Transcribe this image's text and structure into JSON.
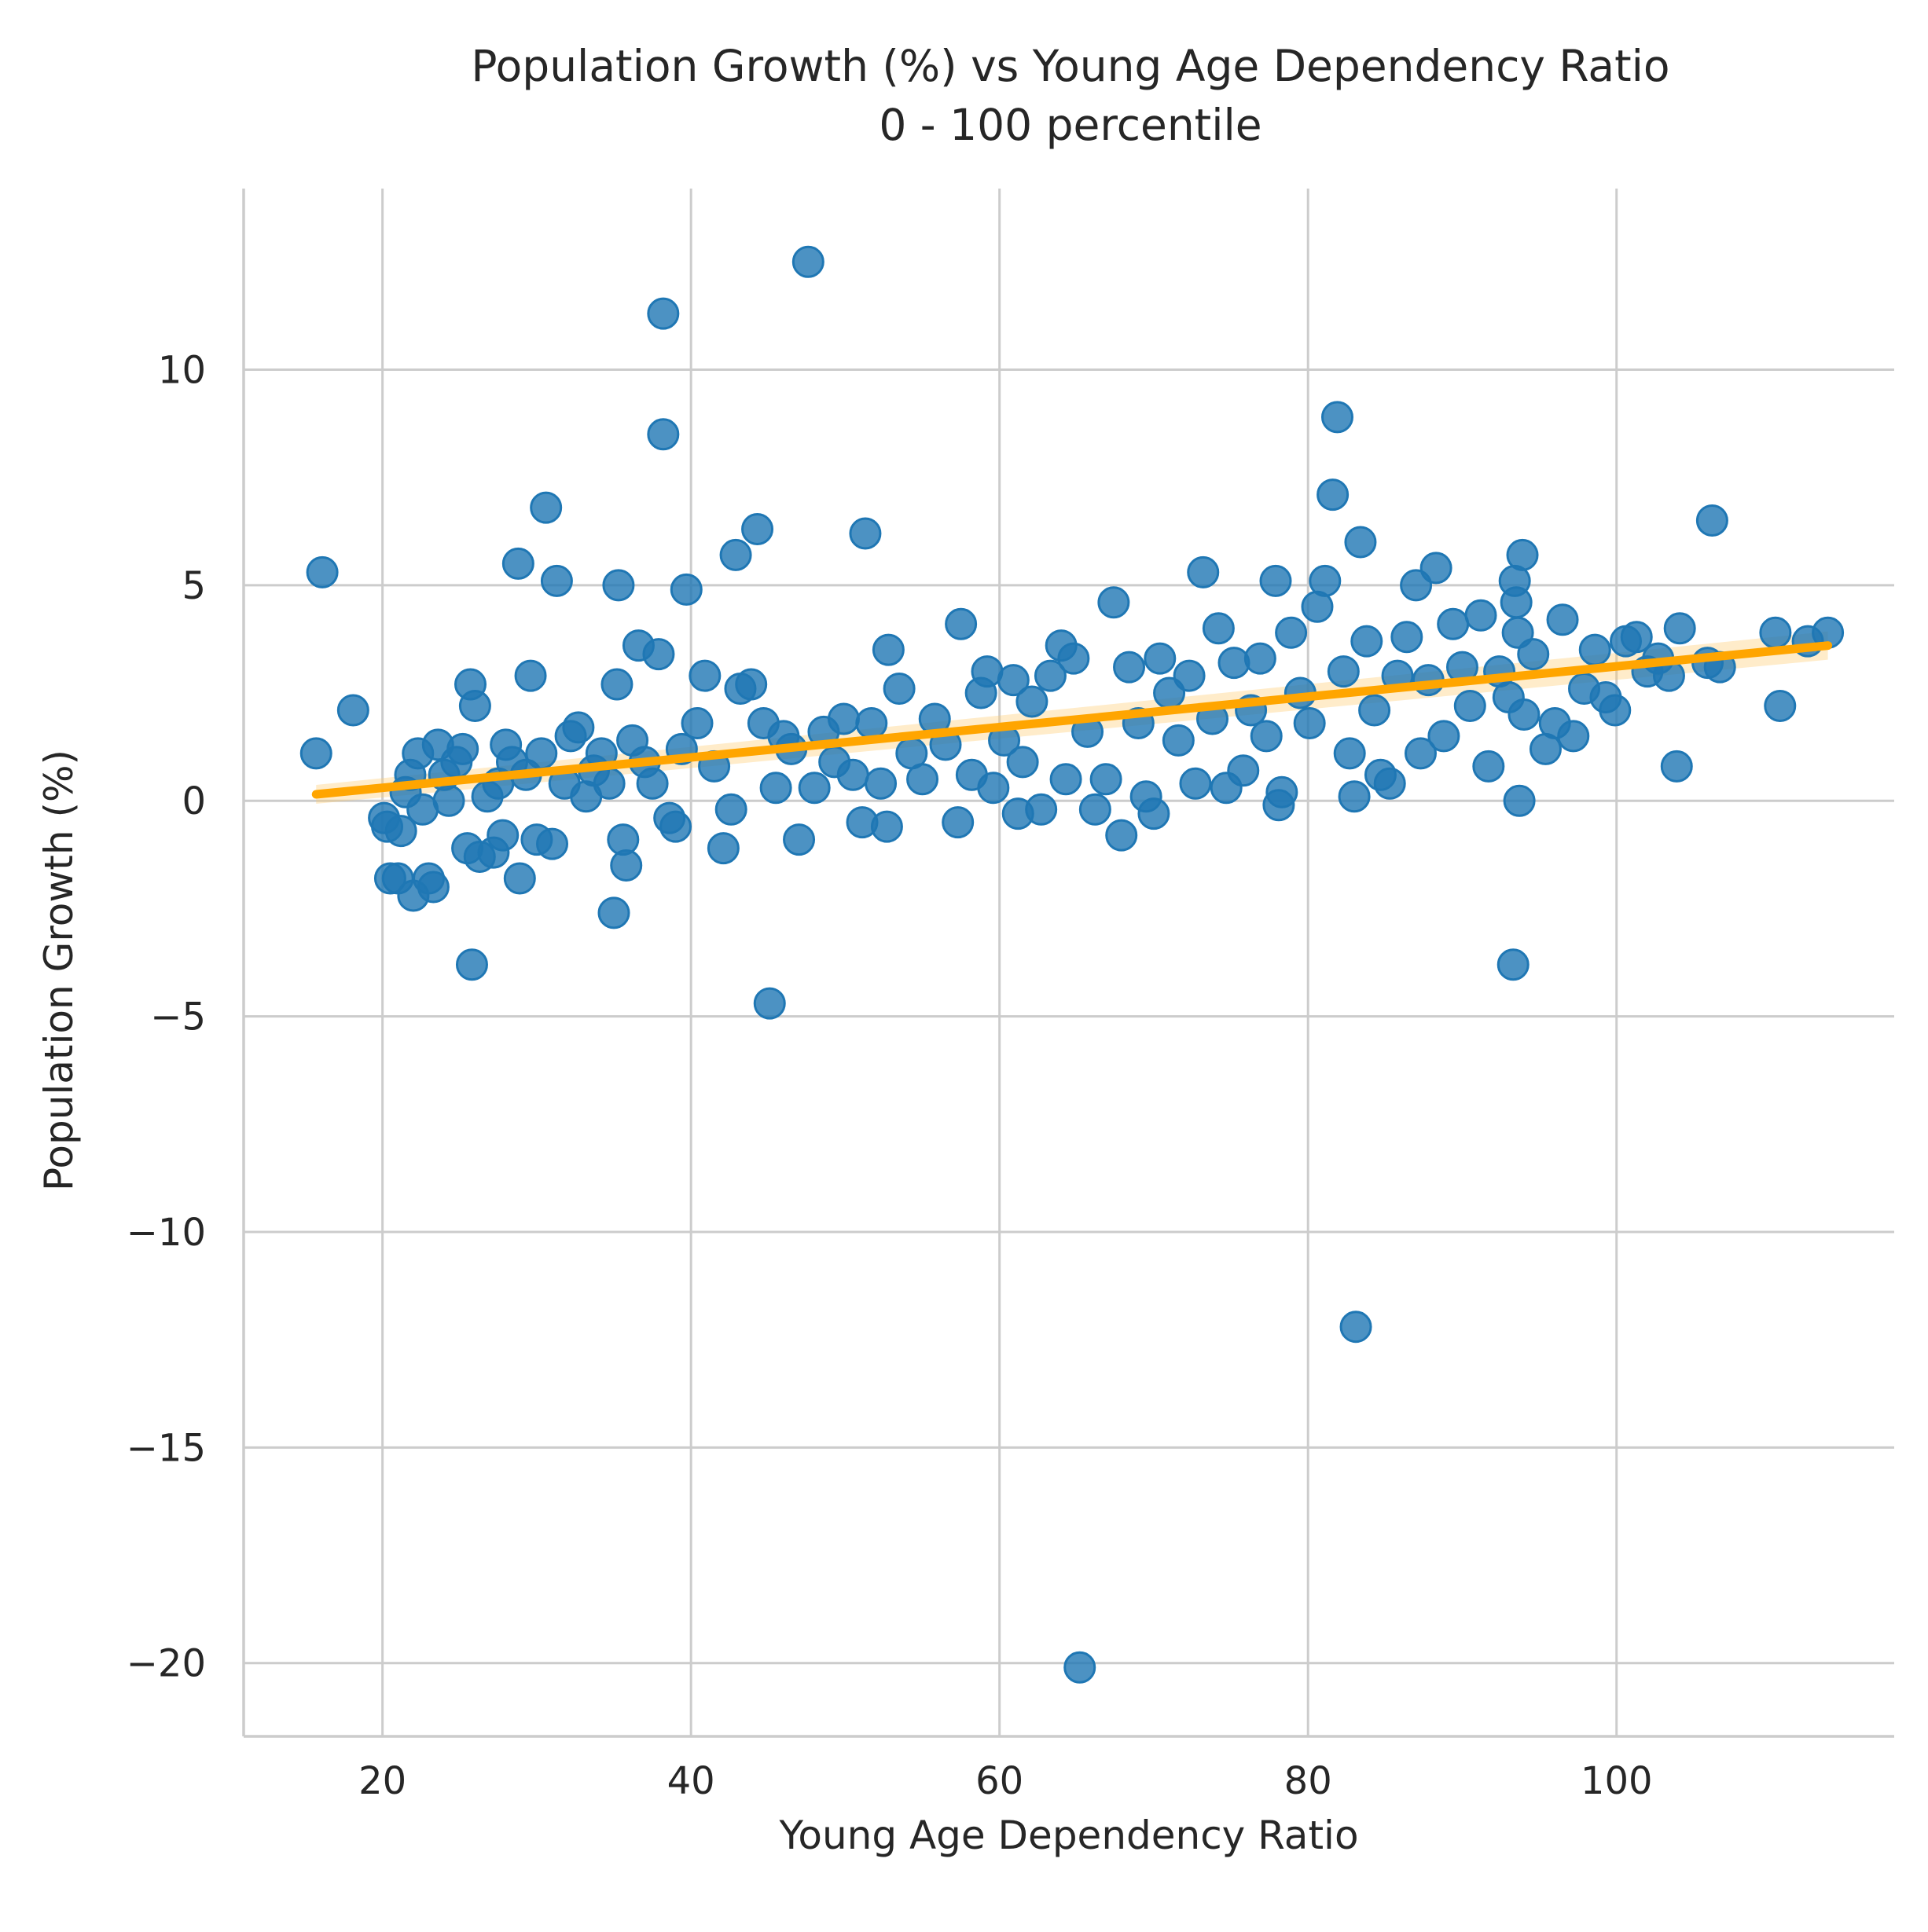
{
  "chart_data": {
    "type": "scatter",
    "title": "Population Growth (%) vs Young Age Dependency Ratio",
    "subtitle": "0 - 100 percentile",
    "xlabel": "Young Age Dependency Ratio",
    "ylabel": "Population Growth (%)",
    "xlim": [
      11,
      118
    ],
    "ylim": [
      -21.7,
      14.2
    ],
    "xticks": [
      20,
      40,
      60,
      80,
      100
    ],
    "yticks": [
      10,
      5,
      0,
      -5,
      -10,
      -15,
      -20
    ],
    "xtick_labels": [
      "20",
      "40",
      "60",
      "80",
      "100"
    ],
    "ytick_labels": [
      "10",
      "5",
      "0",
      "−5",
      "−10",
      "−15",
      "−20"
    ],
    "grid": true,
    "colors": {
      "points": "#1f77b4",
      "regression": "#ffa500",
      "ci_band": "#ffc966"
    },
    "regression_line": {
      "x": [
        15.7,
        113.7
      ],
      "y": [
        0.15,
        3.6
      ]
    },
    "series": [
      {
        "values": [
          [
            15.7,
            1.1
          ],
          [
            16.1,
            5.3
          ],
          [
            18.1,
            2.1
          ],
          [
            20.1,
            -0.4
          ],
          [
            20.3,
            -0.6
          ],
          [
            20.5,
            -1.8
          ],
          [
            21.0,
            -1.8
          ],
          [
            21.2,
            -0.7
          ],
          [
            21.5,
            0.2
          ],
          [
            21.8,
            0.6
          ],
          [
            22.0,
            -2.2
          ],
          [
            22.3,
            1.1
          ],
          [
            22.6,
            -0.2
          ],
          [
            23.0,
            -1.8
          ],
          [
            23.3,
            -2.0
          ],
          [
            23.6,
            1.3
          ],
          [
            24.0,
            0.6
          ],
          [
            24.3,
            0.0
          ],
          [
            24.8,
            0.9
          ],
          [
            25.2,
            1.2
          ],
          [
            25.5,
            -1.1
          ],
          [
            25.7,
            2.7
          ],
          [
            25.8,
            -3.8
          ],
          [
            26.0,
            2.2
          ],
          [
            26.3,
            -1.3
          ],
          [
            26.8,
            0.1
          ],
          [
            27.2,
            -1.2
          ],
          [
            27.5,
            0.4
          ],
          [
            27.8,
            -0.8
          ],
          [
            28.0,
            1.3
          ],
          [
            28.4,
            0.9
          ],
          [
            28.8,
            5.5
          ],
          [
            28.9,
            -1.8
          ],
          [
            29.3,
            0.6
          ],
          [
            29.6,
            2.9
          ],
          [
            30.0,
            -0.9
          ],
          [
            30.3,
            1.1
          ],
          [
            30.6,
            6.8
          ],
          [
            31.0,
            -1.0
          ],
          [
            31.3,
            5.1
          ],
          [
            31.8,
            0.4
          ],
          [
            32.2,
            1.5
          ],
          [
            32.7,
            1.7
          ],
          [
            33.2,
            0.1
          ],
          [
            33.7,
            0.7
          ],
          [
            34.2,
            1.1
          ],
          [
            34.7,
            0.4
          ],
          [
            35.0,
            -2.6
          ],
          [
            35.2,
            2.7
          ],
          [
            35.3,
            5.0
          ],
          [
            35.6,
            -0.9
          ],
          [
            35.8,
            -1.5
          ],
          [
            36.2,
            1.4
          ],
          [
            36.6,
            3.6
          ],
          [
            37.0,
            0.9
          ],
          [
            37.5,
            0.4
          ],
          [
            37.9,
            3.4
          ],
          [
            38.2,
            11.3
          ],
          [
            38.2,
            8.5
          ],
          [
            38.6,
            -0.4
          ],
          [
            39.0,
            -0.6
          ],
          [
            39.4,
            1.2
          ],
          [
            39.7,
            4.9
          ],
          [
            40.4,
            1.8
          ],
          [
            40.9,
            2.9
          ],
          [
            41.5,
            0.8
          ],
          [
            42.1,
            -1.1
          ],
          [
            42.6,
            -0.2
          ],
          [
            42.9,
            5.7
          ],
          [
            43.2,
            2.6
          ],
          [
            43.9,
            2.7
          ],
          [
            44.3,
            6.3
          ],
          [
            44.7,
            1.8
          ],
          [
            45.1,
            -4.7
          ],
          [
            45.5,
            0.3
          ],
          [
            46.0,
            1.5
          ],
          [
            46.5,
            1.2
          ],
          [
            47.0,
            -0.9
          ],
          [
            47.6,
            12.5
          ],
          [
            48.0,
            0.3
          ],
          [
            48.6,
            1.6
          ],
          [
            49.3,
            0.9
          ],
          [
            49.9,
            1.9
          ],
          [
            50.5,
            0.6
          ],
          [
            51.1,
            -0.5
          ],
          [
            51.3,
            6.2
          ],
          [
            51.7,
            1.8
          ],
          [
            52.3,
            0.4
          ],
          [
            52.7,
            -0.6
          ],
          [
            52.8,
            3.5
          ],
          [
            53.5,
            2.6
          ],
          [
            54.3,
            1.1
          ],
          [
            55.0,
            0.5
          ],
          [
            55.8,
            1.9
          ],
          [
            56.5,
            1.3
          ],
          [
            57.3,
            -0.5
          ],
          [
            57.5,
            4.1
          ],
          [
            58.2,
            0.6
          ],
          [
            58.8,
            2.5
          ],
          [
            59.2,
            3.0
          ],
          [
            59.6,
            0.3
          ],
          [
            60.3,
            1.4
          ],
          [
            60.9,
            2.8
          ],
          [
            61.2,
            -0.3
          ],
          [
            61.5,
            0.9
          ],
          [
            62.1,
            2.3
          ],
          [
            62.7,
            -0.2
          ],
          [
            63.3,
            2.9
          ],
          [
            64.0,
            3.6
          ],
          [
            64.3,
            0.5
          ],
          [
            64.8,
            3.3
          ],
          [
            65.2,
            -20.1
          ],
          [
            65.7,
            1.6
          ],
          [
            66.2,
            -0.2
          ],
          [
            66.9,
            0.5
          ],
          [
            67.4,
            4.6
          ],
          [
            67.9,
            -0.8
          ],
          [
            68.4,
            3.1
          ],
          [
            69.0,
            1.8
          ],
          [
            69.5,
            0.1
          ],
          [
            70.0,
            -0.3
          ],
          [
            70.4,
            3.3
          ],
          [
            71.0,
            2.5
          ],
          [
            71.6,
            1.4
          ],
          [
            72.3,
            2.9
          ],
          [
            72.7,
            0.4
          ],
          [
            73.2,
            5.3
          ],
          [
            73.8,
            1.9
          ],
          [
            74.2,
            4.0
          ],
          [
            74.7,
            0.3
          ],
          [
            75.2,
            3.2
          ],
          [
            75.8,
            0.7
          ],
          [
            76.3,
            2.1
          ],
          [
            76.9,
            3.3
          ],
          [
            77.3,
            1.5
          ],
          [
            77.9,
            5.1
          ],
          [
            78.1,
            -0.1
          ],
          [
            78.3,
            0.2
          ],
          [
            78.9,
            3.9
          ],
          [
            79.5,
            2.5
          ],
          [
            80.1,
            1.8
          ],
          [
            80.6,
            4.5
          ],
          [
            81.1,
            5.1
          ],
          [
            81.6,
            7.1
          ],
          [
            81.9,
            8.9
          ],
          [
            82.3,
            3.0
          ],
          [
            82.7,
            1.1
          ],
          [
            83.0,
            0.1
          ],
          [
            83.1,
            -12.2
          ],
          [
            83.4,
            6.0
          ],
          [
            83.8,
            3.7
          ],
          [
            84.3,
            2.1
          ],
          [
            84.7,
            0.6
          ],
          [
            85.3,
            0.4
          ],
          [
            85.8,
            2.9
          ],
          [
            86.4,
            3.8
          ],
          [
            87.0,
            5.0
          ],
          [
            87.3,
            1.1
          ],
          [
            87.8,
            2.8
          ],
          [
            88.3,
            5.4
          ],
          [
            88.8,
            1.5
          ],
          [
            89.4,
            4.1
          ],
          [
            90.0,
            3.1
          ],
          [
            90.5,
            2.2
          ],
          [
            91.2,
            4.3
          ],
          [
            91.7,
            0.8
          ],
          [
            92.4,
            3.0
          ],
          [
            93.0,
            2.4
          ],
          [
            93.3,
            -3.8
          ],
          [
            93.4,
            5.1
          ],
          [
            93.5,
            4.6
          ],
          [
            93.6,
            3.9
          ],
          [
            93.7,
            0.0
          ],
          [
            93.9,
            5.7
          ],
          [
            94.0,
            2.0
          ],
          [
            94.6,
            3.4
          ],
          [
            95.4,
            1.2
          ],
          [
            96.0,
            1.8
          ],
          [
            96.5,
            4.2
          ],
          [
            97.2,
            1.5
          ],
          [
            97.9,
            2.6
          ],
          [
            98.6,
            3.5
          ],
          [
            99.3,
            2.4
          ],
          [
            99.9,
            2.1
          ],
          [
            100.6,
            3.7
          ],
          [
            101.3,
            3.8
          ],
          [
            102.0,
            3.0
          ],
          [
            102.7,
            3.3
          ],
          [
            103.4,
            2.9
          ],
          [
            103.9,
            0.8
          ],
          [
            104.1,
            4.0
          ],
          [
            105.9,
            3.2
          ],
          [
            106.2,
            6.5
          ],
          [
            106.7,
            3.1
          ],
          [
            110.3,
            3.9
          ],
          [
            110.6,
            2.2
          ],
          [
            112.4,
            3.7
          ],
          [
            113.7,
            3.9
          ]
        ]
      }
    ]
  }
}
